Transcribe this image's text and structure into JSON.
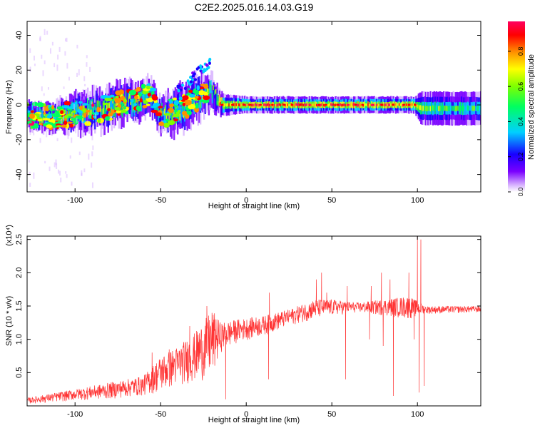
{
  "page": {
    "title": "C2E2.2025.016.14.03.G19"
  },
  "chart_data": [
    {
      "type": "heatmap",
      "title": "C2E2.2025.016.14.03.G19",
      "xlabel": "Height of straight line (km)",
      "ylabel": "Frequency (Hz)",
      "xlim": [
        -128,
        137
      ],
      "ylim": [
        -50,
        48
      ],
      "xticks": [
        -100,
        -50,
        0,
        50,
        100
      ],
      "yticks": [
        -40,
        -20,
        0,
        20,
        40
      ],
      "grid": false,
      "colorbar": {
        "label": "Normalized spectral amplitude",
        "range": [
          0,
          0.97
        ],
        "ticks": [
          0.0,
          0.2,
          0.4,
          0.6,
          0.8
        ],
        "colormap": [
          "#d8b4ff",
          "#7a00ff",
          "#1800ff",
          "#00d0ff",
          "#00ff60",
          "#7fff00",
          "#ffff00",
          "#ff9000",
          "#ff0000",
          "#ff0060"
        ]
      },
      "ridge": [
        {
          "x": -125,
          "f": -6,
          "w": 5,
          "a": 0.45
        },
        {
          "x": -115,
          "f": -7,
          "w": 5,
          "a": 0.5
        },
        {
          "x": -105,
          "f": -6,
          "w": 6,
          "a": 0.55
        },
        {
          "x": -95,
          "f": -4,
          "w": 7,
          "a": 0.55
        },
        {
          "x": -85,
          "f": -3,
          "w": 7,
          "a": 0.55
        },
        {
          "x": -75,
          "f": 0,
          "w": 7,
          "a": 0.55
        },
        {
          "x": -65,
          "f": 2,
          "w": 7,
          "a": 0.55
        },
        {
          "x": -57,
          "f": 6,
          "w": 6,
          "a": 0.5
        },
        {
          "x": -50,
          "f": -6,
          "w": 6,
          "a": 0.45
        },
        {
          "x": -40,
          "f": -3,
          "w": 8,
          "a": 0.5
        },
        {
          "x": -30,
          "f": 3,
          "w": 8,
          "a": 0.5
        },
        {
          "x": -20,
          "f": 8,
          "w": 6,
          "a": 0.45
        },
        {
          "x": -15,
          "f": 0,
          "w": 4,
          "a": 0.7
        },
        {
          "x": 0,
          "f": 0,
          "w": 3,
          "a": 0.85
        },
        {
          "x": 25,
          "f": 0,
          "w": 3,
          "a": 0.85
        },
        {
          "x": 50,
          "f": 0,
          "w": 3,
          "a": 0.85
        },
        {
          "x": 75,
          "f": 0,
          "w": 3,
          "a": 0.85
        },
        {
          "x": 98,
          "f": 0,
          "w": 3,
          "a": 0.8
        },
        {
          "x": 102,
          "f": -2,
          "w": 6,
          "a": 0.55
        },
        {
          "x": 120,
          "f": -2,
          "w": 6,
          "a": 0.45
        },
        {
          "x": 137,
          "f": -2,
          "w": 6,
          "a": 0.45
        }
      ]
    },
    {
      "type": "line",
      "xlabel": "Height of straight line (km)",
      "ylabel": "SNR (10 * v/v)",
      "y_multiplier": "(x10⁴)",
      "xlim": [
        -128,
        137
      ],
      "ylim": [
        0,
        2.55
      ],
      "xticks": [
        -100,
        -50,
        0,
        50,
        100
      ],
      "yticks": [
        0.5,
        1.0,
        1.5,
        2.0,
        2.5
      ],
      "grid": false,
      "series": [
        {
          "color": "#ff3333",
          "envelope": [
            {
              "x": -128,
              "lo": 0.03,
              "hi": 0.12
            },
            {
              "x": -115,
              "lo": 0.05,
              "hi": 0.18
            },
            {
              "x": -100,
              "lo": 0.08,
              "hi": 0.25
            },
            {
              "x": -80,
              "lo": 0.1,
              "hi": 0.35
            },
            {
              "x": -60,
              "lo": 0.15,
              "hi": 0.45
            },
            {
              "x": -50,
              "lo": 0.2,
              "hi": 0.75
            },
            {
              "x": -40,
              "lo": 0.3,
              "hi": 0.9
            },
            {
              "x": -30,
              "lo": 0.35,
              "hi": 1.1
            },
            {
              "x": -20,
              "lo": 0.4,
              "hi": 1.45
            },
            {
              "x": -15,
              "lo": 0.8,
              "hi": 1.25
            },
            {
              "x": -5,
              "lo": 0.95,
              "hi": 1.3
            },
            {
              "x": 10,
              "lo": 1.05,
              "hi": 1.35
            },
            {
              "x": 25,
              "lo": 1.2,
              "hi": 1.45
            },
            {
              "x": 40,
              "lo": 1.3,
              "hi": 1.6
            },
            {
              "x": 50,
              "lo": 1.35,
              "hi": 1.6
            },
            {
              "x": 65,
              "lo": 1.4,
              "hi": 1.55
            },
            {
              "x": 80,
              "lo": 1.35,
              "hi": 1.6
            },
            {
              "x": 95,
              "lo": 1.3,
              "hi": 1.65
            },
            {
              "x": 105,
              "lo": 1.38,
              "hi": 1.5
            },
            {
              "x": 137,
              "lo": 1.4,
              "hi": 1.5
            }
          ],
          "spikes": [
            {
              "x": -120,
              "y": 0.13
            },
            {
              "x": -55,
              "y": 0.8
            },
            {
              "x": -45,
              "y": 0.85
            },
            {
              "x": -33,
              "y": 1.2
            },
            {
              "x": -23,
              "y": 1.5
            },
            {
              "x": -18,
              "y": 1.3
            },
            {
              "x": -12,
              "y": 0.1
            },
            {
              "x": 13,
              "y": 0.4
            },
            {
              "x": 13.5,
              "y": 1.7
            },
            {
              "x": 41,
              "y": 1.9
            },
            {
              "x": 44,
              "y": 2.0
            },
            {
              "x": 47,
              "y": 1.7
            },
            {
              "x": 58,
              "y": 0.4
            },
            {
              "x": 59,
              "y": 1.8
            },
            {
              "x": 72,
              "y": 1.0
            },
            {
              "x": 73,
              "y": 1.8
            },
            {
              "x": 79,
              "y": 2.0
            },
            {
              "x": 80,
              "y": 0.9
            },
            {
              "x": 84,
              "y": 1.9
            },
            {
              "x": 86,
              "y": 0.15
            },
            {
              "x": 87,
              "y": 1.6
            },
            {
              "x": 95,
              "y": 2.0
            },
            {
              "x": 98,
              "y": 1.0
            },
            {
              "x": 100,
              "y": 2.55
            },
            {
              "x": 101,
              "y": 0.2
            },
            {
              "x": 102,
              "y": 2.5
            },
            {
              "x": 104,
              "y": 0.3
            }
          ]
        }
      ]
    }
  ]
}
